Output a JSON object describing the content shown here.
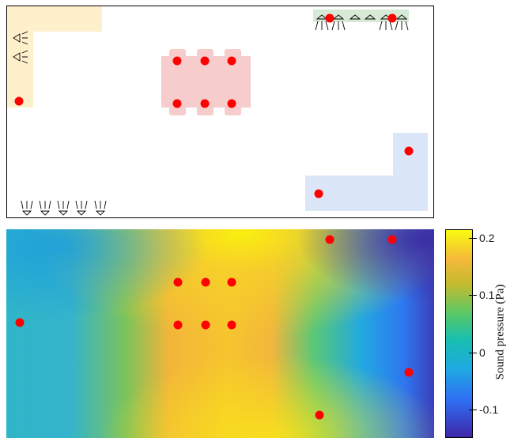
{
  "colors": {
    "zone_sofa": "#fff0cc",
    "zone_table": "#f6cccc",
    "zone_stage": "#d6ead6",
    "zone_corner": "#dbe6f8",
    "marker": "#ff0000",
    "frame": "#000000"
  },
  "colorbar": {
    "title": "Sound pressure (Pa)",
    "ticks": [
      {
        "value": 0.2,
        "label": "0.2"
      },
      {
        "value": 0.1,
        "label": "0.1"
      },
      {
        "value": 0,
        "label": "0"
      },
      {
        "value": -0.1,
        "label": "-0.1"
      }
    ],
    "range": [
      -0.15,
      0.215
    ]
  },
  "icons": {
    "speaker": "speaker-array-icon"
  }
}
